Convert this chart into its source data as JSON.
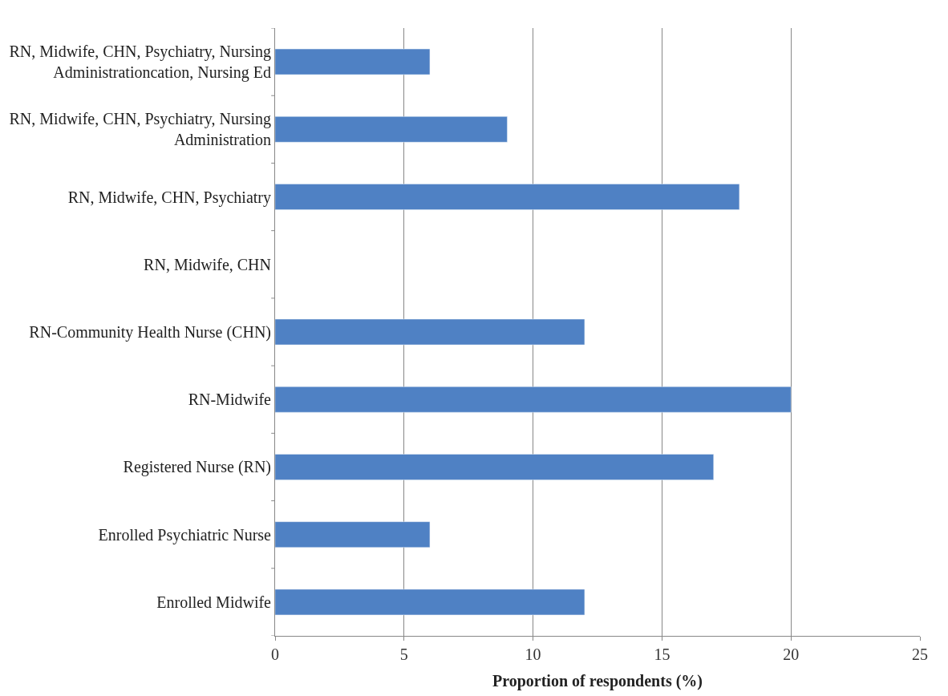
{
  "chart_data": {
    "type": "bar",
    "orientation": "horizontal",
    "xlabel": "Proportion of respondents (%)",
    "categories": [
      "RN, Midwife, CHN, Psychiatry, Nursing Administrationcation, Nursing Ed",
      "RN, Midwife, CHN, Psychiatry, Nursing Administration",
      "RN, Midwife, CHN, Psychiatry",
      "RN, Midwife, CHN",
      "RN-Community Health Nurse (CHN)",
      "RN-Midwife",
      "Registered Nurse (RN)",
      "Enrolled Psychiatric Nurse",
      "Enrolled Midwife"
    ],
    "values": [
      6,
      9,
      18,
      null,
      12,
      20,
      17,
      6,
      12
    ],
    "color": "#4f81c4",
    "xlim": [
      0,
      25
    ],
    "xticks": [
      0,
      5,
      10,
      15,
      20,
      25
    ],
    "grid": "x"
  }
}
